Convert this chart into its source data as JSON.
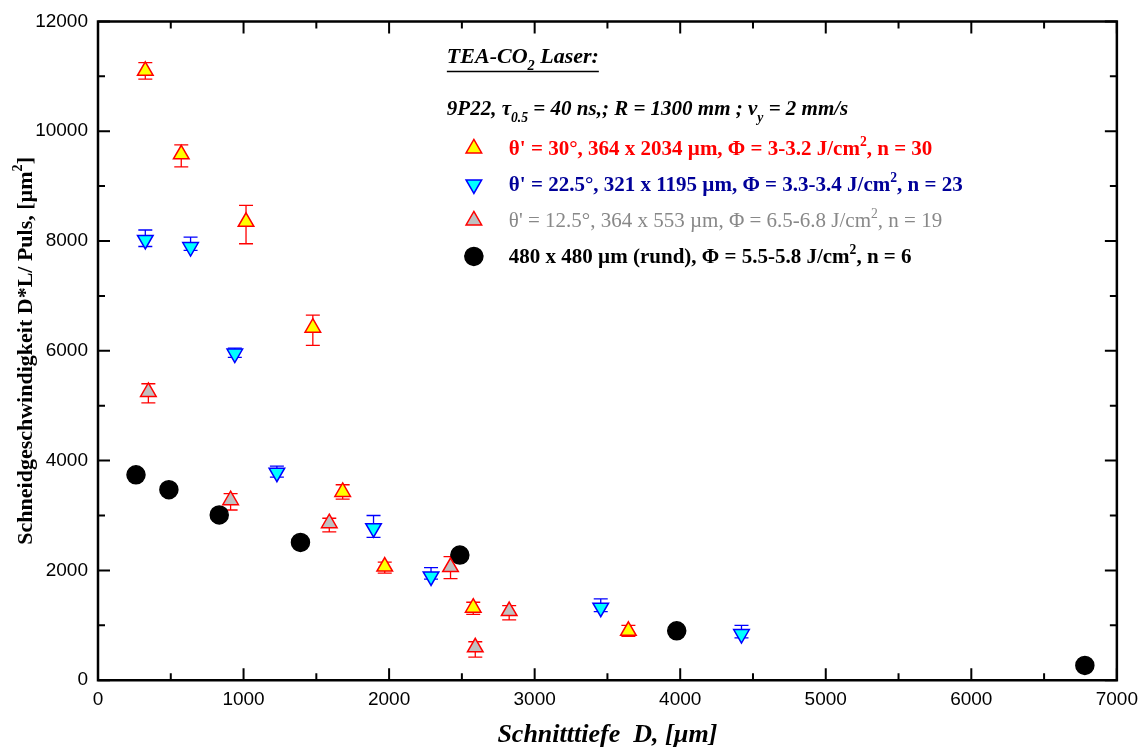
{
  "chart_data": {
    "type": "scatter",
    "xlabel": "Schnitttiefe  D, [µm]",
    "ylabel": "Schneidgeschwindigkeit D*L/ Puls, [µm$^{2}$]",
    "legend_title": "TEA-CO$_{2}$ Laser:",
    "annotations": [
      "9P22, τ$_{0.5}$ = 40 ns,; R = 1300 mm ; v$_{y}$ = 2 mm/s"
    ],
    "xlim": [
      0,
      7000
    ],
    "xticks": [
      0,
      1000,
      2000,
      3000,
      4000,
      5000,
      6000,
      7000
    ],
    "ylim": [
      0,
      12000
    ],
    "yticks": [
      0,
      2000,
      4000,
      6000,
      8000,
      10000,
      12000
    ],
    "grid": false,
    "legend": "top right",
    "series": [
      {
        "name": "θ' = 30°, 364 x 2034 µm, Φ = 3-3.2 J/cm$^{2}$, n = 30",
        "color": "#ffff00",
        "marker": "triangle",
        "x": [
          325,
          572,
          1017,
          1476,
          1681,
          1970,
          2578,
          3644
        ],
        "values": [
          11100,
          9580,
          8350,
          6420,
          3430,
          2070,
          1320,
          900
        ],
        "errors": [
          [
            10950,
            11250
          ],
          [
            9350,
            9750
          ],
          [
            7950,
            8650
          ],
          [
            6100,
            6650
          ],
          [
            3300,
            3560
          ],
          [
            1950,
            2150
          ],
          [
            1200,
            1420
          ],
          [
            800,
            1000
          ]
        ]
      },
      {
        "name": "θ' = 22.5°, 321 x 1195 µm, Φ = 3.3-3.4 J/cm$^{2}$, n = 23",
        "color": "#00ffff",
        "marker": "triangle",
        "x": [
          325,
          636,
          940,
          1229,
          1893,
          2288,
          3454,
          4421
        ],
        "values": [
          8020,
          7890,
          5950,
          3780,
          2770,
          1890,
          1320,
          840
        ],
        "errors": [
          [
            7900,
            8200
          ],
          [
            7830,
            8070
          ],
          [
            5880,
            6050
          ],
          [
            3700,
            3900
          ],
          [
            2600,
            3000
          ],
          [
            1840,
            2050
          ],
          [
            1250,
            1480
          ],
          [
            770,
            1000
          ]
        ]
      },
      {
        "name": "θ' = 12.5°, 364 x 553 µm, Φ = 6.5-6.8 J/cm$^{2}$, n = 19",
        "color": "#c0c0c0",
        "marker": "triangle",
        "x": [
          346,
          911,
          1589,
          2422,
          2592,
          2825
        ],
        "values": [
          5250,
          3280,
          2860,
          2060,
          600,
          1260
        ],
        "errors": [
          [
            5050,
            5400
          ],
          [
            3100,
            3400
          ],
          [
            2700,
            2950
          ],
          [
            1850,
            2250
          ],
          [
            420,
            700
          ],
          [
            1100,
            1360
          ]
        ]
      },
      {
        "name": "480 x 480 µm (rund), Φ = 5.5-5.8 J/cm$^{2}$, n = 6",
        "color": "#000000",
        "marker": "circle",
        "x": [
          261,
          487,
          833,
          1391,
          2486,
          3976,
          6780
        ],
        "values": [
          3740,
          3470,
          3010,
          2510,
          2280,
          900,
          270
        ]
      }
    ]
  }
}
